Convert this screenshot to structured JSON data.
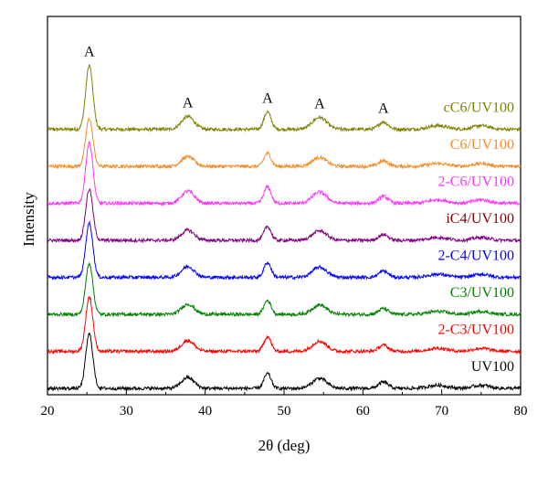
{
  "chart_data": {
    "type": "line",
    "title": "",
    "xlabel": "2θ (deg)",
    "ylabel": "Intensity",
    "xlim": [
      20,
      80
    ],
    "x_ticks": [
      20,
      30,
      40,
      50,
      60,
      70,
      80
    ],
    "y_ticks_shown": false,
    "grid": false,
    "legend": "inline labels at right of each trace",
    "peaks": [
      {
        "x": 25.3,
        "label": "A"
      },
      {
        "x": 37.8,
        "label": "A"
      },
      {
        "x": 47.9,
        "label": "A"
      },
      {
        "x": 54.5,
        "label": "A"
      },
      {
        "x": 62.6,
        "label": "A"
      }
    ],
    "series": [
      {
        "name": "cC6/UV100",
        "color": "#808000",
        "offset": 7,
        "peak_scale": 1.0
      },
      {
        "name": "C6/UV100",
        "color": "#f28c28",
        "offset": 6,
        "peak_scale": 0.75
      },
      {
        "name": "2-C6/UV100",
        "color": "#ff33ff",
        "offset": 5,
        "peak_scale": 0.95
      },
      {
        "name": "iC4/UV100",
        "color": "#800080",
        "label_color": "#800000",
        "offset": 4,
        "peak_scale": 0.8
      },
      {
        "name": "2-C4/UV100",
        "color": "#0000ff",
        "offset": 3,
        "peak_scale": 0.85
      },
      {
        "name": "C3/UV100",
        "color": "#008000",
        "offset": 2,
        "peak_scale": 0.8
      },
      {
        "name": "2-C3/UV100",
        "color": "#ff0000",
        "offset": 1,
        "peak_scale": 0.85
      },
      {
        "name": "UV100",
        "color": "#000000",
        "offset": 0,
        "peak_scale": 0.85
      }
    ]
  }
}
